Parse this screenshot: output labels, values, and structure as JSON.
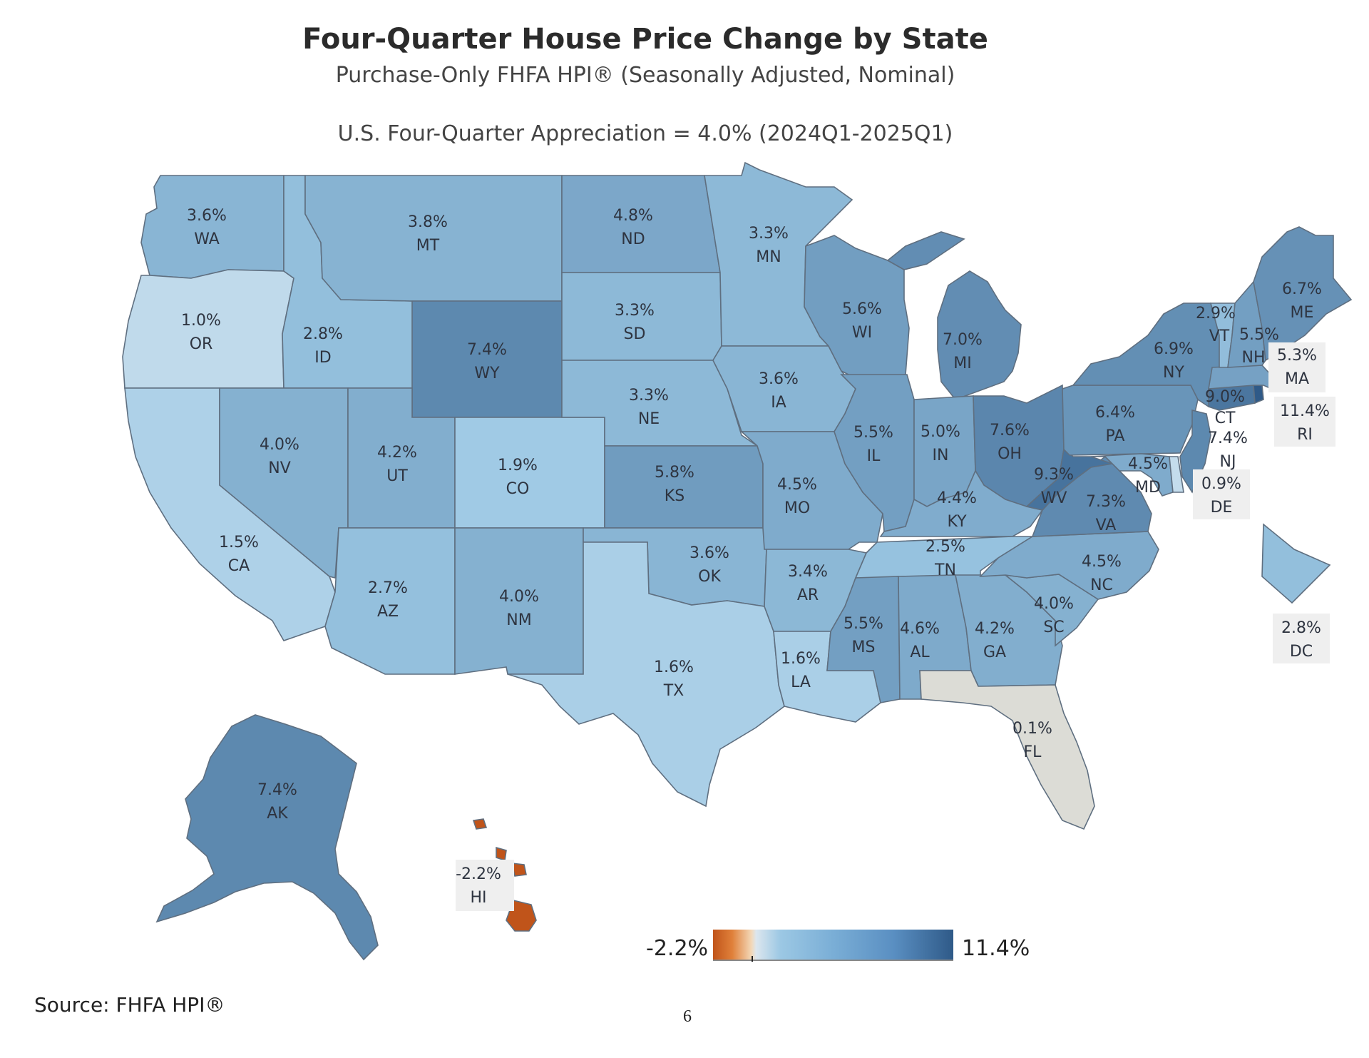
{
  "title": "Four-Quarter House Price Change by State",
  "subtitle": "Purchase-Only FHFA HPI® (Seasonally Adjusted, Nominal)",
  "note": "U.S. Four-Quarter Appreciation = 4.0% (2024Q1-2025Q1)",
  "legend": {
    "min_label": "-2.2%",
    "max_label": "11.4%",
    "min": -2.2,
    "max": 11.4
  },
  "source": "Source:  FHFA HPI®",
  "page_number": "6",
  "colors": {
    "low": "#c0541a",
    "zero": "#dcdcd6",
    "mid": "#9cc8e4",
    "high": "#2f5a88"
  },
  "states": [
    {
      "abbr": "WA",
      "value": 3.6,
      "label": "3.6%"
    },
    {
      "abbr": "OR",
      "value": 1.0,
      "label": "1.0%"
    },
    {
      "abbr": "CA",
      "value": 1.5,
      "label": "1.5%"
    },
    {
      "abbr": "ID",
      "value": 2.8,
      "label": "2.8%"
    },
    {
      "abbr": "NV",
      "value": 4.0,
      "label": "4.0%"
    },
    {
      "abbr": "MT",
      "value": 3.8,
      "label": "3.8%"
    },
    {
      "abbr": "WY",
      "value": 7.4,
      "label": "7.4%"
    },
    {
      "abbr": "UT",
      "value": 4.2,
      "label": "4.2%"
    },
    {
      "abbr": "AZ",
      "value": 2.7,
      "label": "2.7%"
    },
    {
      "abbr": "CO",
      "value": 1.9,
      "label": "1.9%"
    },
    {
      "abbr": "NM",
      "value": 4.0,
      "label": "4.0%"
    },
    {
      "abbr": "ND",
      "value": 4.8,
      "label": "4.8%"
    },
    {
      "abbr": "SD",
      "value": 3.3,
      "label": "3.3%"
    },
    {
      "abbr": "NE",
      "value": 3.3,
      "label": "3.3%"
    },
    {
      "abbr": "KS",
      "value": 5.8,
      "label": "5.8%"
    },
    {
      "abbr": "OK",
      "value": 3.6,
      "label": "3.6%"
    },
    {
      "abbr": "TX",
      "value": 1.6,
      "label": "1.6%"
    },
    {
      "abbr": "MN",
      "value": 3.3,
      "label": "3.3%"
    },
    {
      "abbr": "IA",
      "value": 3.6,
      "label": "3.6%"
    },
    {
      "abbr": "MO",
      "value": 4.5,
      "label": "4.5%"
    },
    {
      "abbr": "AR",
      "value": 3.4,
      "label": "3.4%"
    },
    {
      "abbr": "LA",
      "value": 1.6,
      "label": "1.6%"
    },
    {
      "abbr": "WI",
      "value": 5.6,
      "label": "5.6%"
    },
    {
      "abbr": "IL",
      "value": 5.5,
      "label": "5.5%"
    },
    {
      "abbr": "MI",
      "value": 7.0,
      "label": "7.0%"
    },
    {
      "abbr": "IN",
      "value": 5.0,
      "label": "5.0%"
    },
    {
      "abbr": "OH",
      "value": 7.6,
      "label": "7.6%"
    },
    {
      "abbr": "KY",
      "value": 4.4,
      "label": "4.4%"
    },
    {
      "abbr": "TN",
      "value": 2.5,
      "label": "2.5%"
    },
    {
      "abbr": "MS",
      "value": 5.5,
      "label": "5.5%"
    },
    {
      "abbr": "AL",
      "value": 4.6,
      "label": "4.6%"
    },
    {
      "abbr": "GA",
      "value": 4.2,
      "label": "4.2%"
    },
    {
      "abbr": "FL",
      "value": 0.1,
      "label": "0.1%"
    },
    {
      "abbr": "SC",
      "value": 4.0,
      "label": "4.0%"
    },
    {
      "abbr": "NC",
      "value": 4.5,
      "label": "4.5%"
    },
    {
      "abbr": "VA",
      "value": 7.3,
      "label": "7.3%"
    },
    {
      "abbr": "WV",
      "value": 9.3,
      "label": "9.3%"
    },
    {
      "abbr": "PA",
      "value": 6.4,
      "label": "6.4%"
    },
    {
      "abbr": "NY",
      "value": 6.9,
      "label": "6.9%"
    },
    {
      "abbr": "MD",
      "value": 4.5,
      "label": "4.5%"
    },
    {
      "abbr": "DE",
      "value": 0.9,
      "label": "0.9%"
    },
    {
      "abbr": "NJ",
      "value": 7.4,
      "label": "7.4%"
    },
    {
      "abbr": "CT",
      "value": 9.0,
      "label": "9.0%"
    },
    {
      "abbr": "RI",
      "value": 11.4,
      "label": "11.4%"
    },
    {
      "abbr": "MA",
      "value": 5.3,
      "label": "5.3%"
    },
    {
      "abbr": "VT",
      "value": 2.9,
      "label": "2.9%"
    },
    {
      "abbr": "NH",
      "value": 5.5,
      "label": "5.5%"
    },
    {
      "abbr": "ME",
      "value": 6.7,
      "label": "6.7%"
    },
    {
      "abbr": "DC",
      "value": 2.8,
      "label": "2.8%"
    },
    {
      "abbr": "AK",
      "value": 7.4,
      "label": "7.4%"
    },
    {
      "abbr": "HI",
      "value": -2.2,
      "label": "-2.2%"
    }
  ]
}
